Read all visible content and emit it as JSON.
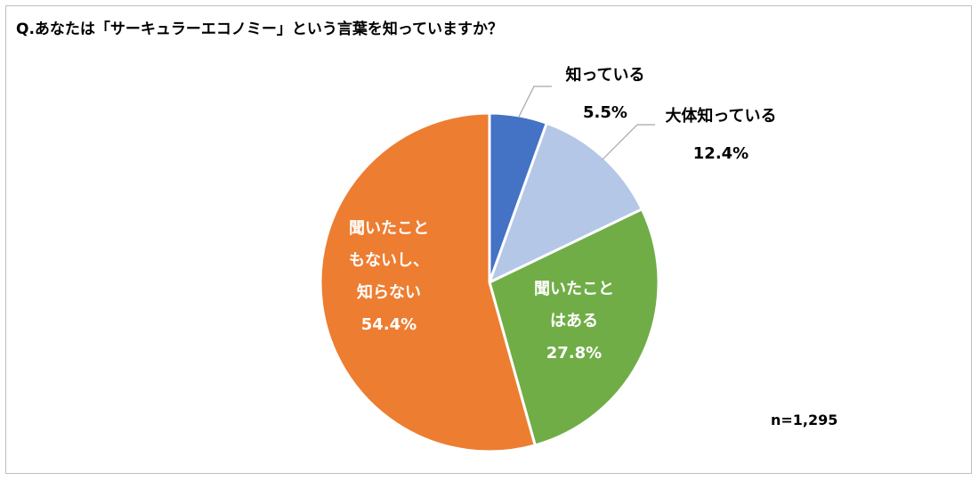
{
  "title": "Q.あなたは「サーキュラーエコノミー」という言葉を知っていますか？",
  "note": "n=1,295",
  "chart_data": {
    "type": "pie",
    "slices": [
      {
        "label_lines": [
          "知っている"
        ],
        "value": 5.5,
        "value_text": "5.5%",
        "color": "#4472c4",
        "label_color": "#000000"
      },
      {
        "label_lines": [
          "大体知っている"
        ],
        "value": 12.4,
        "value_text": "12.4%",
        "color": "#b4c7e7",
        "label_color": "#000000"
      },
      {
        "label_lines": [
          "聞いたこと",
          "はある"
        ],
        "value": 27.8,
        "value_text": "27.8%",
        "color": "#70ad47",
        "label_color": "#ffffff"
      },
      {
        "label_lines": [
          "聞いたこと",
          "もないし、",
          "知らない"
        ],
        "value": 54.4,
        "value_text": "54.4%",
        "color": "#ed7d31",
        "label_color": "#ffffff"
      }
    ],
    "start_angle": "12 o'clock",
    "direction": "clockwise",
    "legend": "none"
  }
}
